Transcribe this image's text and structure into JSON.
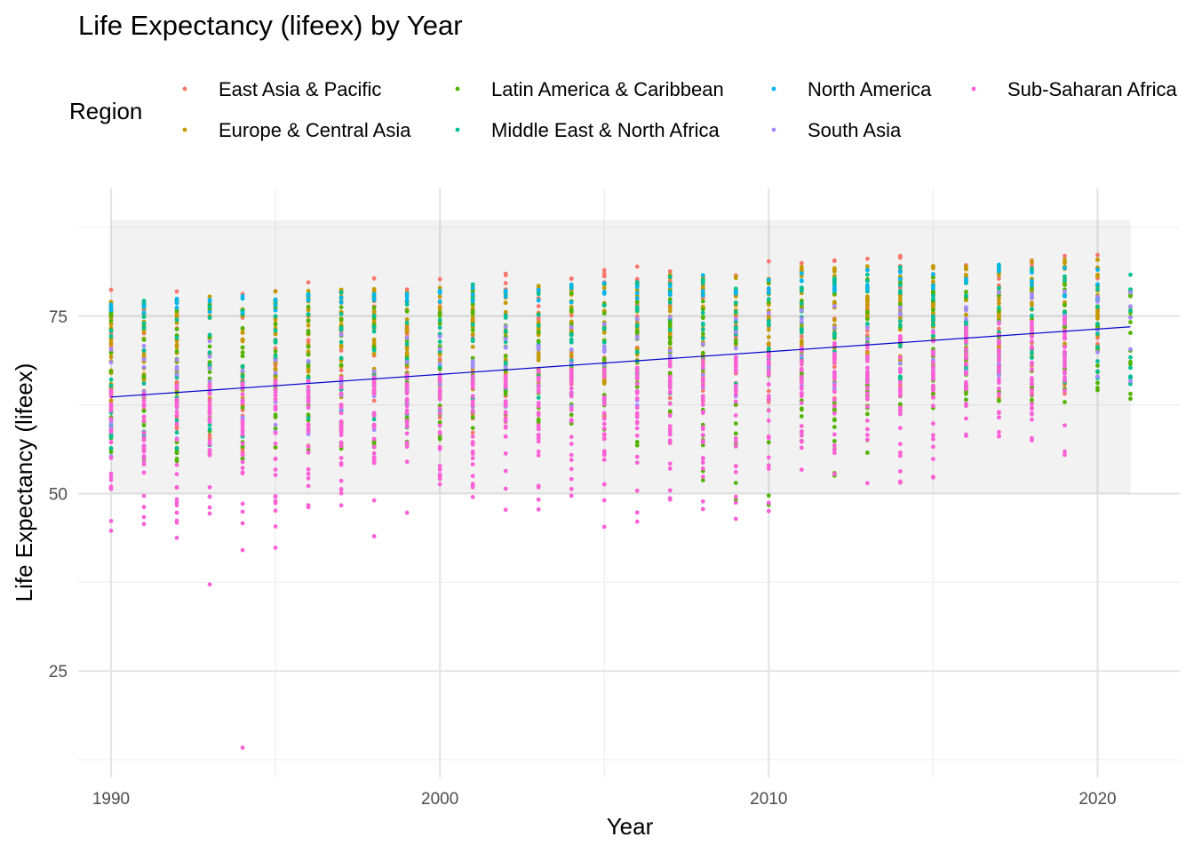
{
  "chart_data": {
    "type": "scatter",
    "title": "Life Expectancy (lifeex) by Year",
    "xlabel": "Year",
    "ylabel": "Life Expectancy (lifeex)",
    "xlim": [
      1989,
      2022.5
    ],
    "ylim": [
      10,
      93
    ],
    "x_ticks": [
      1990,
      2000,
      2010,
      2020
    ],
    "x_tick_labels": [
      "1990",
      "2000",
      "2010",
      "2020"
    ],
    "y_ticks": [
      25,
      50,
      75
    ],
    "y_tick_labels": [
      "25",
      "50",
      "75"
    ],
    "grid": true,
    "legend": {
      "title": "Region",
      "position": "top",
      "entries": [
        {
          "name": "East Asia & Pacific",
          "color": "#F8766D"
        },
        {
          "name": "Europe & Central Asia",
          "color": "#C49A00"
        },
        {
          "name": "Latin America & Caribbean",
          "color": "#53B400"
        },
        {
          "name": "Middle East & North Africa",
          "color": "#00C094"
        },
        {
          "name": "North America",
          "color": "#00B6EB"
        },
        {
          "name": "South Asia",
          "color": "#A58AFF"
        },
        {
          "name": "Sub-Saharan Africa",
          "color": "#FB61D7"
        }
      ]
    },
    "series": [
      {
        "name": "East Asia & Pacific",
        "color": "#F8766D",
        "ranges": [
          [
            1990,
            55,
            78.8
          ],
          [
            1995,
            56,
            79.6
          ],
          [
            2000,
            58,
            80.9
          ],
          [
            2005,
            60,
            82.0
          ],
          [
            2010,
            62,
            82.9
          ],
          [
            2015,
            63,
            83.8
          ],
          [
            2020,
            63.5,
            84.4
          ]
        ]
      },
      {
        "name": "Europe & Central Asia",
        "color": "#C49A00",
        "ranges": [
          [
            1990,
            63,
            77.5
          ],
          [
            1995,
            63,
            78.5
          ],
          [
            2000,
            64,
            79.5
          ],
          [
            2005,
            65.5,
            80.7
          ],
          [
            2010,
            67,
            81.8
          ],
          [
            2015,
            69,
            82.8
          ],
          [
            2020,
            69.5,
            83.5
          ]
        ]
      },
      {
        "name": "Latin America & Caribbean",
        "color": "#53B400",
        "ranges": [
          [
            1990,
            54,
            77.5
          ],
          [
            1995,
            55,
            78
          ],
          [
            2000,
            57,
            78.8
          ],
          [
            2005,
            59,
            79.5
          ],
          [
            2010,
            46,
            80.2
          ],
          [
            2015,
            62,
            80.8
          ],
          [
            2021,
            63,
            79
          ]
        ]
      },
      {
        "name": "Middle East & North Africa",
        "color": "#00C094",
        "ranges": [
          [
            1990,
            55,
            77.8
          ],
          [
            1995,
            58,
            78.5
          ],
          [
            2000,
            61,
            79.5
          ],
          [
            2005,
            63,
            80.5
          ],
          [
            2010,
            65,
            81.5
          ],
          [
            2015,
            66,
            82.5
          ],
          [
            2021,
            65,
            81
          ]
        ]
      },
      {
        "name": "North America",
        "color": "#00B6EB",
        "ranges": [
          [
            1990,
            75,
            77.5
          ],
          [
            1995,
            75.5,
            78
          ],
          [
            2000,
            76.5,
            79
          ],
          [
            2005,
            77,
            80.5
          ],
          [
            2010,
            78,
            81.5
          ],
          [
            2015,
            78.8,
            82.2
          ],
          [
            2020,
            77,
            82.5
          ]
        ]
      },
      {
        "name": "South Asia",
        "color": "#A58AFF",
        "ranges": [
          [
            1990,
            54,
            71
          ],
          [
            1995,
            57,
            72
          ],
          [
            2000,
            60,
            73
          ],
          [
            2005,
            62,
            74.5
          ],
          [
            2010,
            64,
            76
          ],
          [
            2015,
            66,
            77.5
          ],
          [
            2021,
            65,
            80
          ]
        ]
      },
      {
        "name": "Sub-Saharan Africa",
        "color": "#FB61D7",
        "ranges": [
          [
            1990,
            42,
            65
          ],
          [
            1995,
            40,
            66
          ],
          [
            2000,
            44.5,
            67
          ],
          [
            2005,
            42,
            68
          ],
          [
            2010,
            45.5,
            70
          ],
          [
            2015,
            51,
            73
          ],
          [
            2019,
            53,
            75
          ]
        ]
      }
    ],
    "outliers": [
      {
        "x": 1993,
        "y": 37.2,
        "series": "Sub-Saharan Africa"
      },
      {
        "x": 1994,
        "y": 14.2,
        "series": "Sub-Saharan Africa"
      }
    ],
    "trend_line": {
      "color": "#0000CD",
      "x": [
        1990,
        2021
      ],
      "y": [
        63.6,
        73.5
      ]
    },
    "ribbon": {
      "x": [
        1990,
        2021
      ],
      "ymin": 50,
      "ymax": 88.5
    }
  }
}
